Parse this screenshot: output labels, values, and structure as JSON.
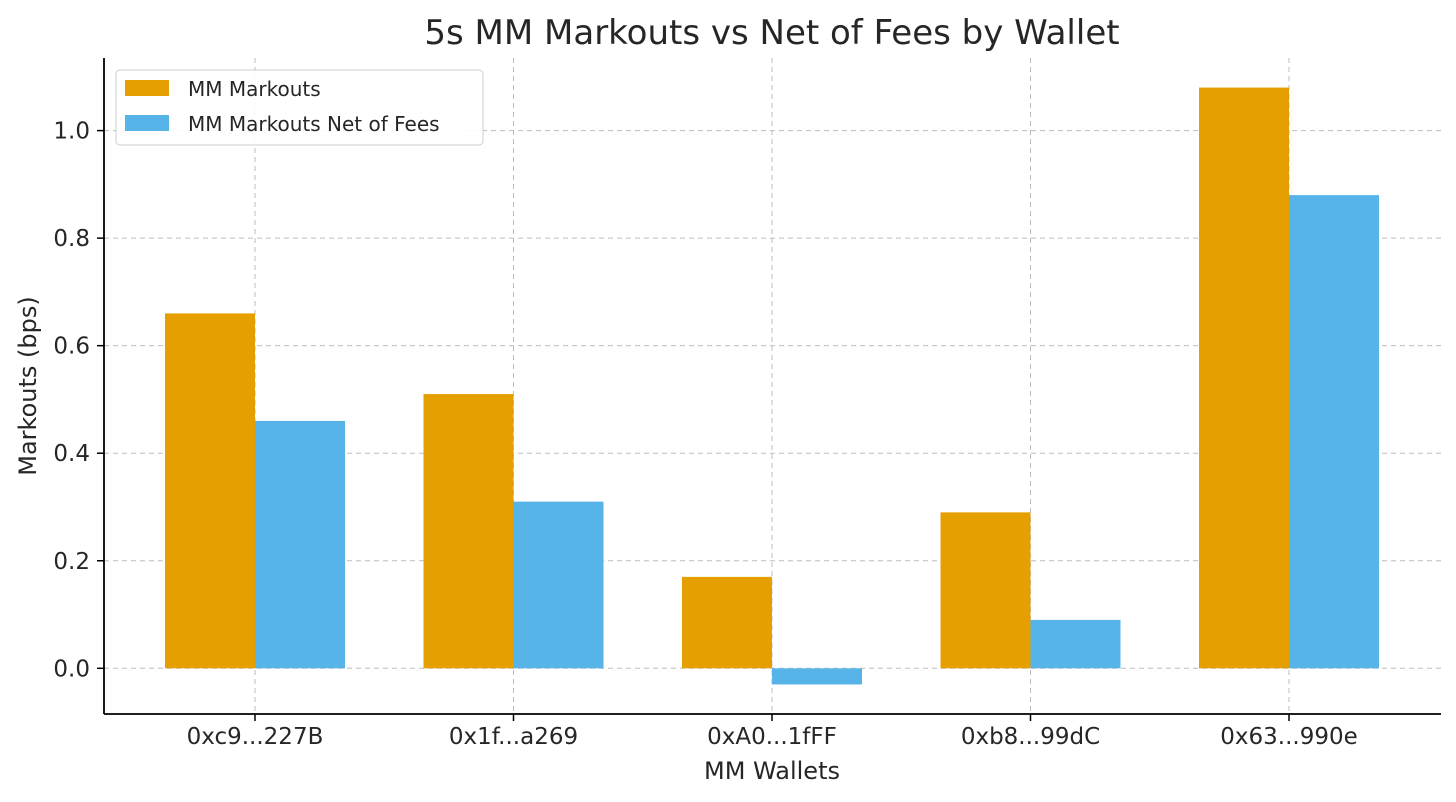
{
  "chart_data": {
    "type": "bar",
    "title": "5s MM Markouts vs Net of Fees by Wallet",
    "xlabel": "MM Wallets",
    "ylabel": "Markouts (bps)",
    "categories": [
      "0xc9...227B",
      "0x1f...a269",
      "0xA0...1fFF",
      "0xb8...99dC",
      "0x63...990e"
    ],
    "series": [
      {
        "name": "MM Markouts",
        "color": "#E69F00",
        "values": [
          0.66,
          0.51,
          0.17,
          0.29,
          1.08
        ]
      },
      {
        "name": "MM Markouts Net of Fees",
        "color": "#56B4E9",
        "values": [
          0.46,
          0.31,
          -0.03,
          0.09,
          0.88
        ]
      }
    ],
    "ylim": [
      -0.085,
      1.135
    ],
    "yticks": [
      0.0,
      0.2,
      0.4,
      0.6,
      0.8,
      1.0
    ],
    "ytick_labels": [
      "0.0",
      "0.2",
      "0.4",
      "0.6",
      "0.8",
      "1.0"
    ],
    "grid": true,
    "legend_position": "top-left"
  }
}
